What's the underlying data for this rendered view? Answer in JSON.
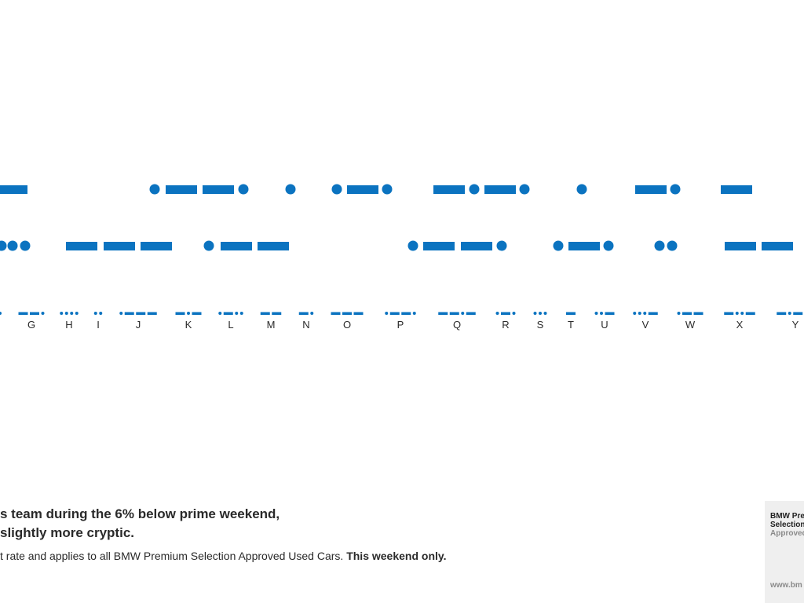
{
  "colors": {
    "accent": "#0b73c0",
    "text": "#2a2a2a",
    "muted": "#8a8a8a",
    "panel": "#efefef"
  },
  "morse_message": {
    "line1": "-   .--.   .   .-.   -.--.   .   -.   -",
    "line2": "..   ---   .--   .--.   .-.   ..   --"
  },
  "legend": [
    {
      "letter": "G",
      "code": "--."
    },
    {
      "letter": "H",
      "code": "...."
    },
    {
      "letter": "I",
      "code": ".."
    },
    {
      "letter": "J",
      "code": ".---"
    },
    {
      "letter": "K",
      "code": "-.-"
    },
    {
      "letter": "L",
      "code": ".-.."
    },
    {
      "letter": "M",
      "code": "--"
    },
    {
      "letter": "N",
      "code": "-."
    },
    {
      "letter": "O",
      "code": "---"
    },
    {
      "letter": "P",
      "code": ".--."
    },
    {
      "letter": "Q",
      "code": "--.-"
    },
    {
      "letter": "R",
      "code": ".-."
    },
    {
      "letter": "S",
      "code": "..."
    },
    {
      "letter": "T",
      "code": "-"
    },
    {
      "letter": "U",
      "code": "..-"
    },
    {
      "letter": "V",
      "code": "...-"
    },
    {
      "letter": "W",
      "code": ".--"
    },
    {
      "letter": "X",
      "code": "-..-"
    },
    {
      "letter": "Y",
      "code": "-.--"
    }
  ],
  "copy": {
    "headline_line1": "s team during the 6% below prime weekend,",
    "headline_line2": "slightly more cryptic.",
    "body_text": "t rate and applies to all BMW Premium Selection Approved Used Cars.",
    "body_emphasis": "This weekend only."
  },
  "brand": {
    "line1": "BMW Pre",
    "line2": "Selection",
    "line3": "Approved",
    "url": "www.bm"
  }
}
